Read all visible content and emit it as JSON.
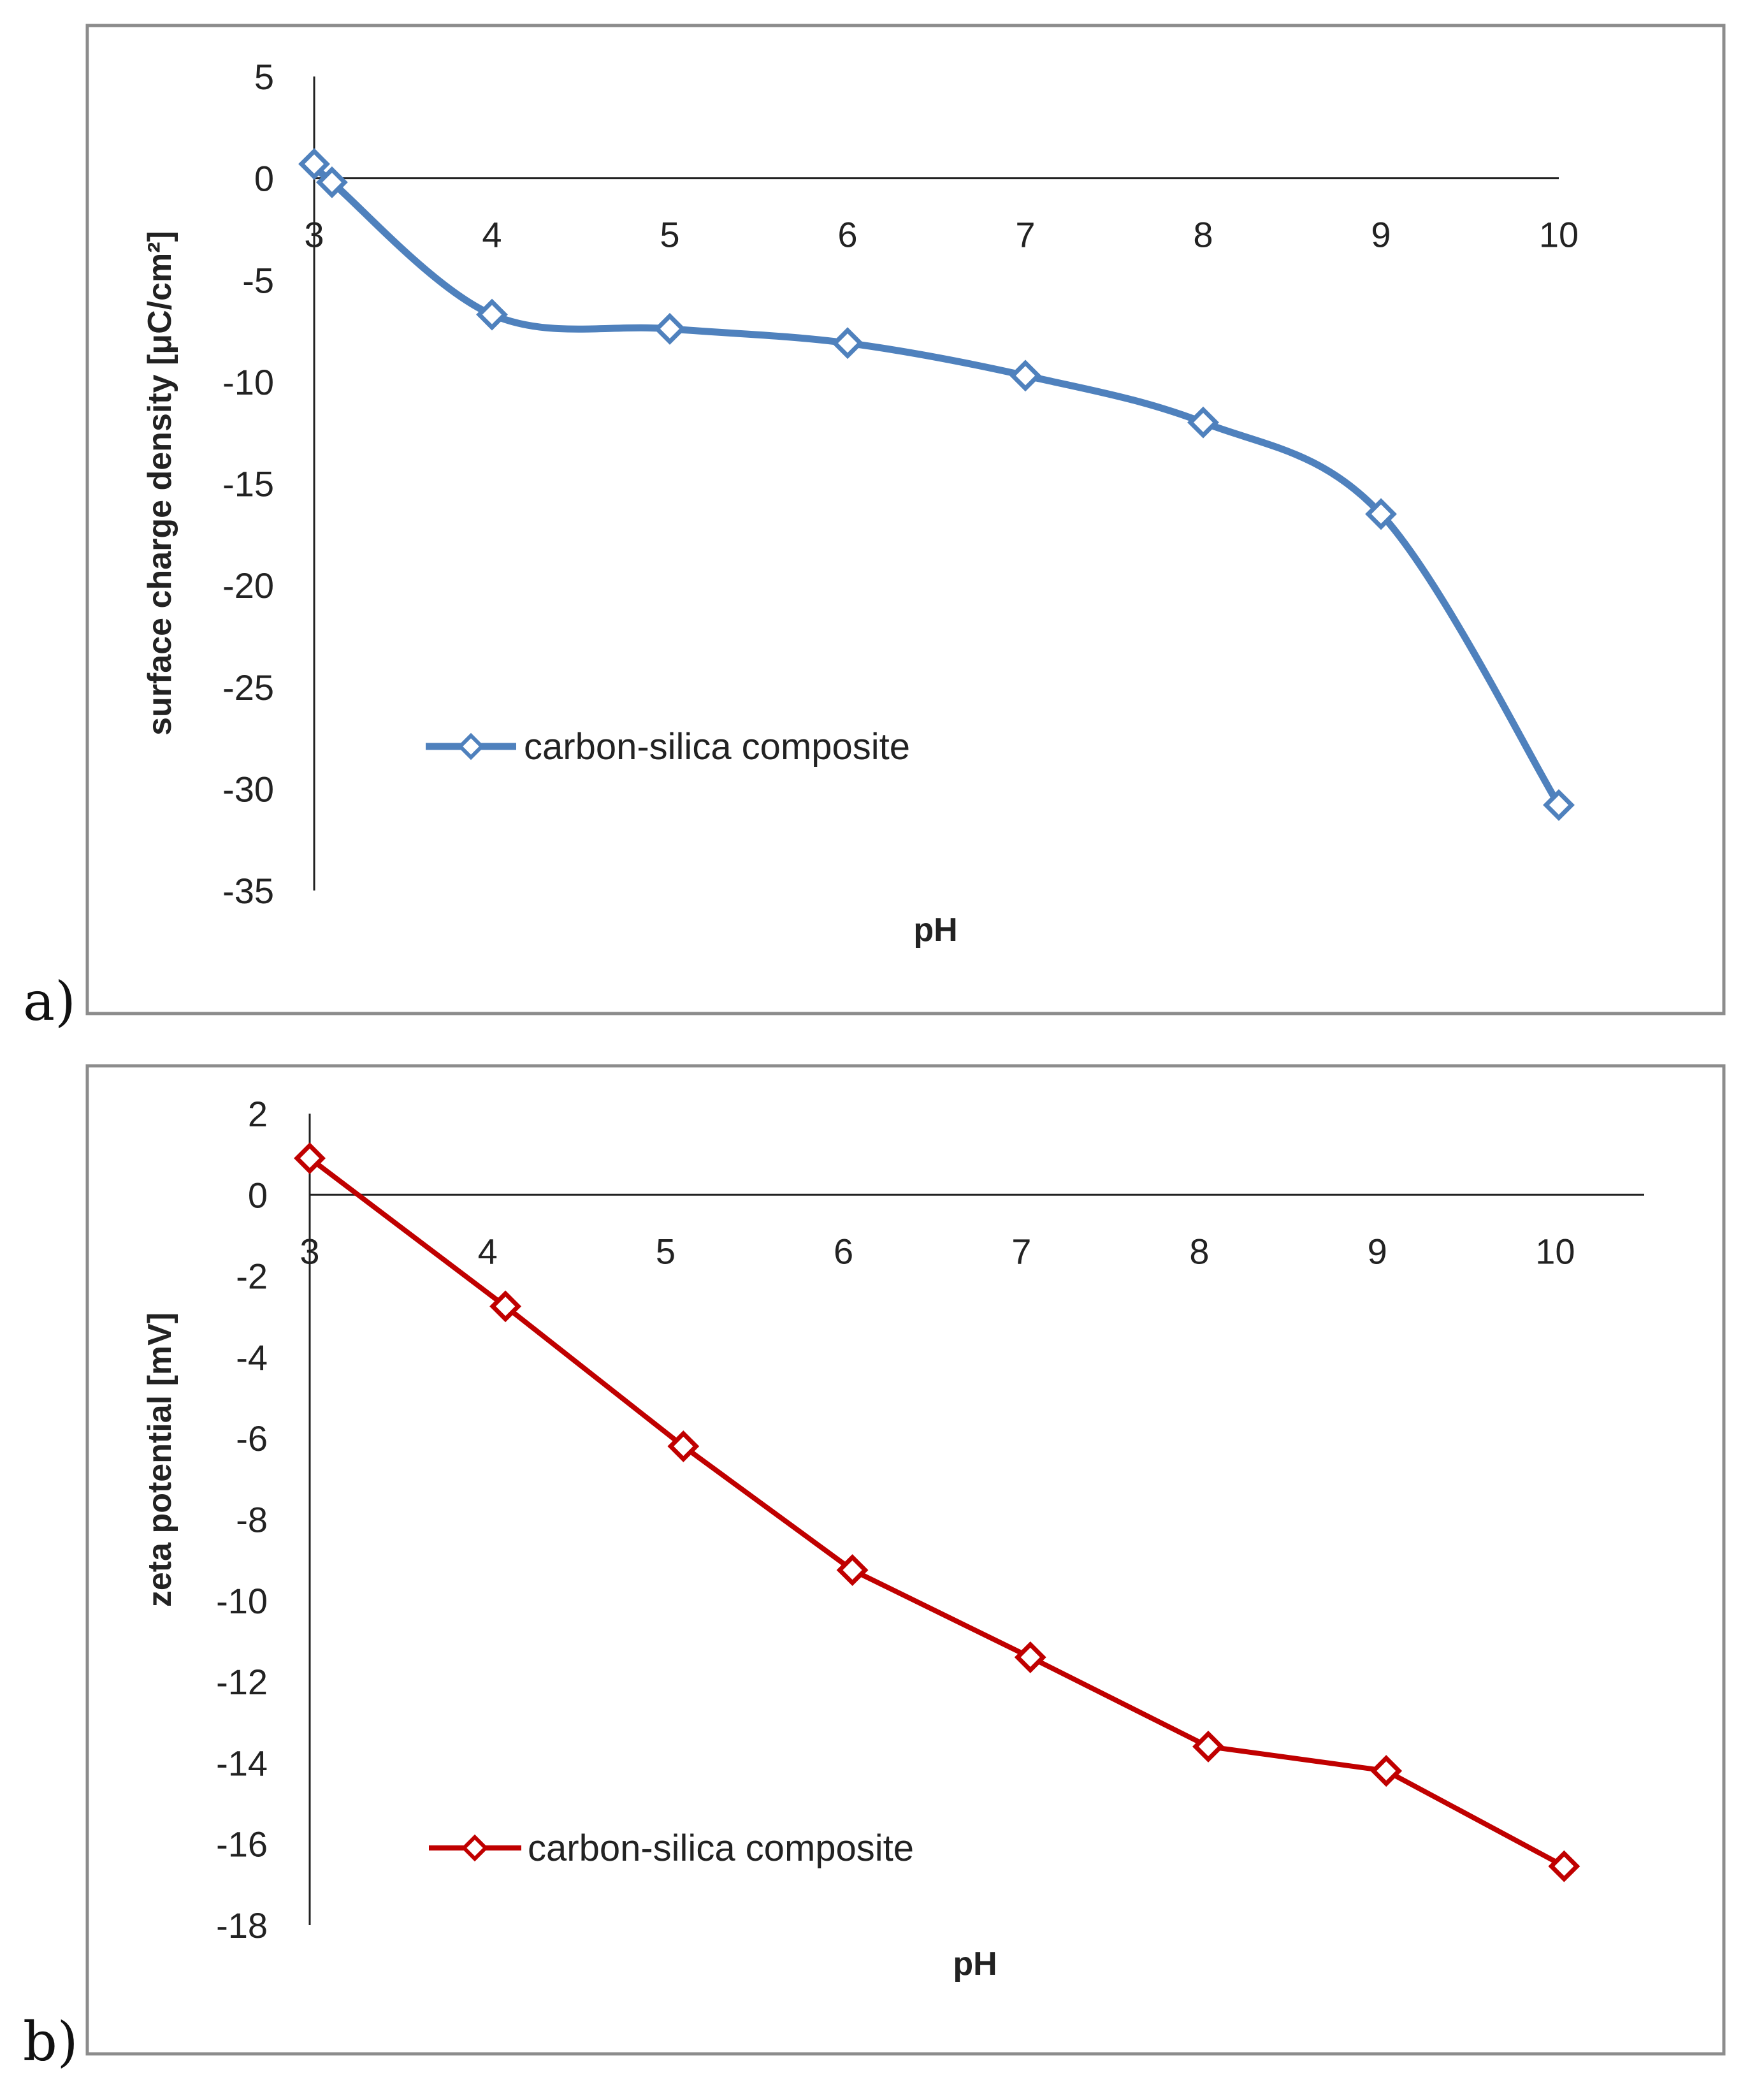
{
  "figure": {
    "panels": [
      "a)",
      "b)"
    ]
  },
  "chart_data": [
    {
      "type": "line",
      "panel_label": "a)",
      "title": "",
      "xlabel": "pH",
      "ylabel": "surface charge density [μC/cm²]",
      "xlim": [
        3,
        10
      ],
      "ylim": [
        -35,
        5
      ],
      "x_ticks": [
        "3",
        "4",
        "5",
        "6",
        "7",
        "8",
        "9",
        "10"
      ],
      "y_ticks": [
        "5",
        "0",
        "-5",
        "-10",
        "-15",
        "-20",
        "-25",
        "-30",
        "-35"
      ],
      "smooth": true,
      "color": "#4f81bd",
      "legend": "carbon-silica composite",
      "series": [
        {
          "name": "carbon-silica composite",
          "x": [
            3.0,
            3.1,
            4.0,
            5.0,
            6.0,
            7.0,
            8.0,
            9.0,
            10.0
          ],
          "y": [
            0.7,
            -0.2,
            -6.7,
            -7.4,
            -8.1,
            -9.7,
            -12.0,
            -16.5,
            -30.8
          ]
        }
      ]
    },
    {
      "type": "line",
      "panel_label": "b)",
      "title": "",
      "xlabel": "pH",
      "ylabel": "zeta potential [mV]",
      "xlim": [
        3,
        10.5
      ],
      "ylim": [
        -18,
        2
      ],
      "x_ticks": [
        "3",
        "4",
        "5",
        "6",
        "7",
        "8",
        "9",
        "10"
      ],
      "y_ticks": [
        "2",
        "0",
        "-2",
        "-4",
        "-6",
        "-8",
        "-10",
        "-12",
        "-14",
        "-16",
        "-18"
      ],
      "smooth": false,
      "color": "#c00000",
      "legend": "carbon-silica composite",
      "series": [
        {
          "name": "carbon-silica composite",
          "x": [
            3.0,
            4.1,
            5.1,
            6.05,
            7.05,
            8.05,
            9.05,
            10.05
          ],
          "y": [
            0.9,
            -2.75,
            -6.2,
            -9.25,
            -11.4,
            -13.6,
            -14.2,
            -16.55
          ]
        }
      ]
    }
  ]
}
